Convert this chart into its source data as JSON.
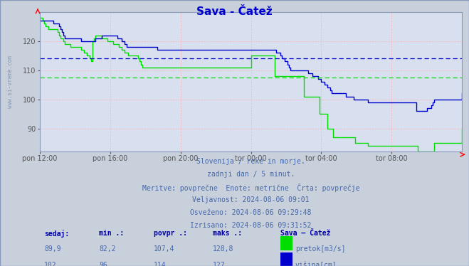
{
  "title": "Sava - Čatež",
  "title_color": "#0000cc",
  "bg_color": "#c8d0dc",
  "plot_bg_color": "#d8e0f0",
  "avg_line_green": 107.4,
  "avg_line_blue": 114.0,
  "ylim": [
    82,
    130
  ],
  "yticks": [
    90,
    100,
    110,
    120
  ],
  "xticklabels": [
    "pon 12:00",
    "pon 16:00",
    "pon 20:00",
    "tor 00:00",
    "tor 04:00",
    "tor 08:00"
  ],
  "xtick_positions": [
    0,
    48,
    96,
    144,
    192,
    240
  ],
  "total_points": 289,
  "subtitle_lines": [
    "Slovenija / reke in morje.",
    "zadnji dan / 5 minut.",
    "Meritve: povprečne  Enote: metrične  Črta: povprečje",
    "Veljavnost: 2024-08-06 09:01",
    "Osveženo: 2024-08-06 09:29:48",
    "Izrisano: 2024-08-06 09:31:52"
  ],
  "table_headers": [
    "sedaj:",
    "min .:",
    "povpr .:",
    "maks .:",
    "Sava – Čatež"
  ],
  "table_row1_vals": [
    "89,9",
    "82,2",
    "107,4",
    "128,8"
  ],
  "table_row1_label": "pretok[m3/s]",
  "table_row2_vals": [
    "102",
    "96",
    "114",
    "127"
  ],
  "table_row2_label": "višina[cm]",
  "line_green_color": "#00dd00",
  "line_blue_color": "#0000cc",
  "left_label": "www.si-vreme.com",
  "grid_color": "#ffb0b0",
  "tick_color": "#555555",
  "text_color": "#4466aa",
  "header_color": "#0000aa",
  "green_data": [
    128,
    128,
    127,
    126,
    125,
    125,
    124,
    124,
    124,
    124,
    124,
    124,
    123,
    122,
    121,
    121,
    120,
    119,
    119,
    119,
    119,
    118,
    118,
    118,
    118,
    118,
    118,
    118,
    117,
    117,
    116,
    116,
    115,
    115,
    114,
    113,
    120,
    121,
    122,
    122,
    122,
    122,
    121,
    121,
    121,
    121,
    120,
    120,
    120,
    120,
    119,
    119,
    119,
    119,
    118,
    118,
    117,
    117,
    116,
    116,
    115,
    115,
    115,
    115,
    115,
    115,
    115,
    114,
    113,
    112,
    111,
    111,
    111,
    111,
    111,
    111,
    111,
    111,
    111,
    111,
    111,
    111,
    111,
    111,
    111,
    111,
    111,
    111,
    111,
    111,
    111,
    111,
    111,
    111,
    111,
    111,
    111,
    111,
    111,
    111,
    111,
    111,
    111,
    111,
    111,
    111,
    111,
    111,
    111,
    111,
    111,
    111,
    111,
    111,
    111,
    111,
    111,
    111,
    111,
    111,
    111,
    111,
    111,
    111,
    111,
    111,
    111,
    111,
    111,
    111,
    111,
    111,
    111,
    111,
    111,
    111,
    111,
    111,
    111,
    111,
    111,
    111,
    111,
    111,
    115,
    115,
    115,
    115,
    115,
    115,
    115,
    115,
    115,
    115,
    115,
    115,
    115,
    115,
    115,
    115,
    108,
    108,
    108,
    108,
    108,
    108,
    108,
    108,
    108,
    108,
    108,
    108,
    108,
    108,
    108,
    108,
    108,
    108,
    108,
    108,
    101,
    101,
    101,
    101,
    101,
    101,
    101,
    101,
    101,
    101,
    101,
    95,
    95,
    95,
    95,
    95,
    90,
    90,
    90,
    90,
    87,
    87,
    87,
    87,
    87,
    87,
    87,
    87,
    87,
    87,
    87,
    87,
    87,
    87,
    87,
    85,
    85,
    85,
    85,
    85,
    85,
    85,
    85,
    85,
    84,
    84,
    84,
    84,
    84,
    84,
    84,
    84,
    84,
    84,
    84,
    84,
    84,
    84,
    84,
    84,
    84,
    84,
    84,
    84,
    84,
    84,
    84,
    84,
    84,
    84,
    84,
    84,
    84,
    84,
    84,
    84,
    84,
    84,
    82,
    82,
    82,
    82,
    82,
    82,
    82,
    82,
    82,
    82,
    82,
    85,
    85,
    85,
    85,
    85,
    85,
    85,
    85,
    85,
    85,
    85,
    85,
    85,
    85,
    85,
    85,
    85,
    85,
    85,
    90
  ],
  "blue_data": [
    127,
    127,
    127,
    127,
    127,
    127,
    127,
    127,
    127,
    126,
    126,
    126,
    126,
    125,
    124,
    123,
    122,
    121,
    121,
    121,
    121,
    121,
    121,
    121,
    121,
    121,
    121,
    121,
    120,
    120,
    120,
    120,
    120,
    120,
    120,
    120,
    120,
    120,
    121,
    121,
    121,
    121,
    122,
    122,
    122,
    122,
    122,
    122,
    122,
    122,
    122,
    122,
    122,
    121,
    121,
    121,
    120,
    120,
    119,
    118,
    118,
    118,
    118,
    118,
    118,
    118,
    118,
    118,
    118,
    118,
    118,
    118,
    118,
    118,
    118,
    118,
    118,
    118,
    118,
    118,
    117,
    117,
    117,
    117,
    117,
    117,
    117,
    117,
    117,
    117,
    117,
    117,
    117,
    117,
    117,
    117,
    117,
    117,
    117,
    117,
    117,
    117,
    117,
    117,
    117,
    117,
    117,
    117,
    117,
    117,
    117,
    117,
    117,
    117,
    117,
    117,
    117,
    117,
    117,
    117,
    117,
    117,
    117,
    117,
    117,
    117,
    117,
    117,
    117,
    117,
    117,
    117,
    117,
    117,
    117,
    117,
    117,
    117,
    117,
    117,
    117,
    117,
    117,
    117,
    117,
    117,
    117,
    117,
    117,
    117,
    117,
    117,
    117,
    117,
    117,
    117,
    117,
    117,
    117,
    117,
    117,
    116,
    116,
    116,
    115,
    114,
    114,
    113,
    113,
    112,
    111,
    110,
    110,
    110,
    110,
    110,
    110,
    110,
    110,
    110,
    110,
    110,
    110,
    109,
    109,
    109,
    108,
    108,
    108,
    108,
    107,
    107,
    106,
    106,
    105,
    105,
    104,
    104,
    103,
    102,
    102,
    102,
    102,
    102,
    102,
    102,
    102,
    102,
    102,
    101,
    101,
    101,
    101,
    101,
    100,
    100,
    100,
    100,
    100,
    100,
    100,
    100,
    100,
    100,
    99,
    99,
    99,
    99,
    99,
    99,
    99,
    99,
    99,
    99,
    99,
    99,
    99,
    99,
    99,
    99,
    99,
    99,
    99,
    99,
    99,
    99,
    99,
    99,
    99,
    99,
    99,
    99,
    99,
    99,
    99,
    99,
    99,
    96,
    96,
    96,
    96,
    96,
    96,
    96,
    97,
    97,
    97,
    98,
    99,
    100,
    100,
    100,
    100,
    100,
    100,
    100,
    100,
    100,
    100,
    100,
    100,
    100,
    100,
    100,
    100,
    100,
    100,
    100,
    102
  ]
}
